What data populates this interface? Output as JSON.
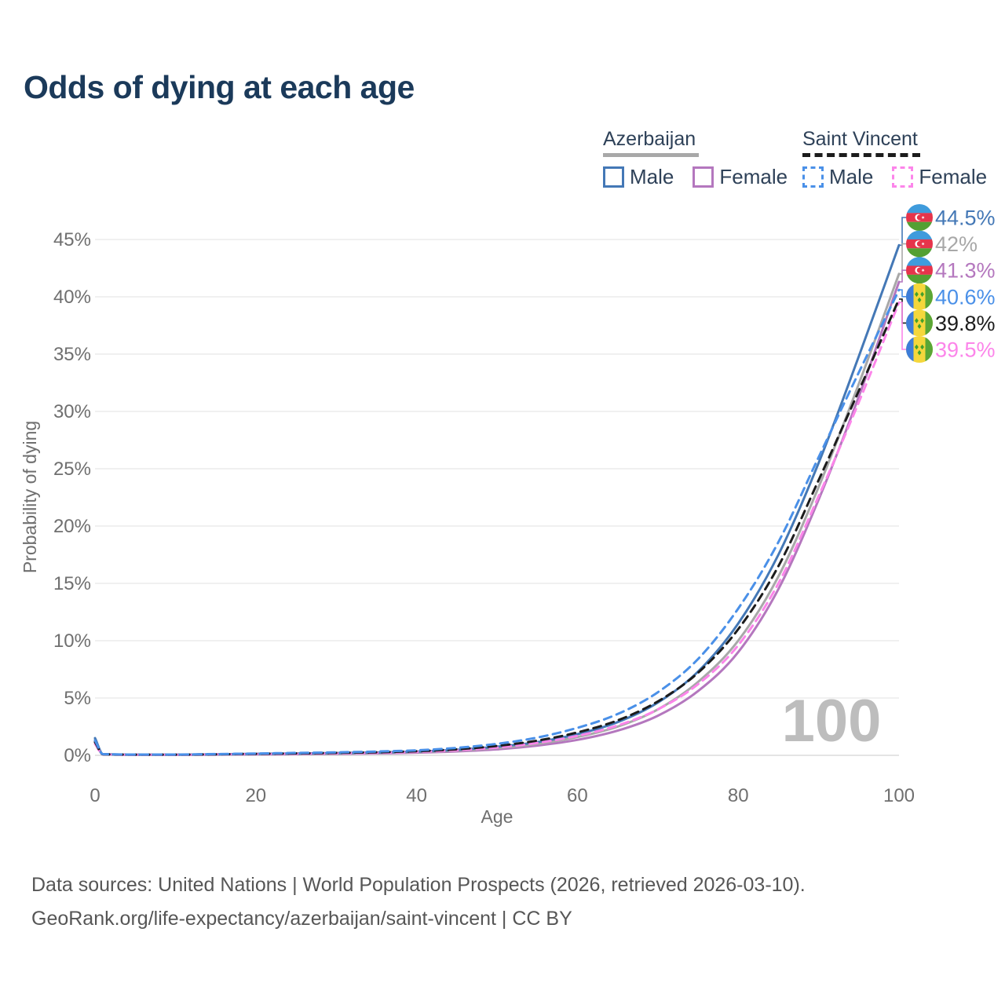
{
  "page": {
    "title": "Odds of dying at each age"
  },
  "legend": {
    "groups": [
      {
        "id": "azerbaijan",
        "title": "Azerbaijan",
        "line_color": "#9e9e9e",
        "line_style": "solid",
        "items": [
          {
            "label": "Male",
            "color": "#4478b6",
            "style": "solid"
          },
          {
            "label": "Female",
            "color": "#b477be",
            "style": "solid"
          }
        ]
      },
      {
        "id": "saint-vincent",
        "title": "Saint Vincent",
        "line_color": "#1a1a1a",
        "line_style": "dashed",
        "items": [
          {
            "label": "Male",
            "color": "#4a90e8",
            "style": "dashed"
          },
          {
            "label": "Female",
            "color": "#fc85ea",
            "style": "dashed"
          }
        ]
      }
    ]
  },
  "chart_data": {
    "type": "line",
    "title": "Odds of dying at each age",
    "xlabel": "Age",
    "ylabel": "Probability of dying",
    "xlim": [
      0,
      100
    ],
    "ylim": [
      0,
      47
    ],
    "xticks": [
      0,
      20,
      40,
      60,
      80,
      100
    ],
    "yticks": [
      0,
      5,
      10,
      15,
      20,
      25,
      30,
      35,
      40,
      45
    ],
    "ytick_suffix": "%",
    "grid": "horizontal",
    "legend_position": "top-right",
    "watermark": "100",
    "ages": [
      0,
      1,
      5,
      10,
      15,
      20,
      25,
      30,
      35,
      40,
      45,
      50,
      55,
      60,
      65,
      70,
      75,
      80,
      85,
      90,
      95,
      100
    ],
    "series": [
      {
        "id": "az-male",
        "country": "Azerbaijan",
        "sex": "Male",
        "flag": "az",
        "color": "#4478b6",
        "dash": "solid",
        "end_value": 44.5,
        "end_label": "44.5%",
        "values": [
          1.5,
          0.1,
          0.06,
          0.06,
          0.09,
          0.13,
          0.16,
          0.2,
          0.25,
          0.33,
          0.48,
          0.75,
          1.15,
          1.85,
          2.9,
          4.6,
          7.3,
          11.5,
          17.5,
          25.5,
          34.8,
          44.5
        ]
      },
      {
        "id": "az-both",
        "country": "Azerbaijan",
        "sex": "Both sexes",
        "flag": "az",
        "color": "#a8a8a8",
        "dash": "solid",
        "end_value": 42,
        "end_label": "42%",
        "values": [
          1.35,
          0.09,
          0.05,
          0.05,
          0.07,
          0.1,
          0.13,
          0.16,
          0.21,
          0.28,
          0.41,
          0.63,
          1.0,
          1.6,
          2.5,
          4.0,
          6.4,
          10.0,
          15.6,
          23.4,
          32.4,
          42.0
        ]
      },
      {
        "id": "az-female",
        "country": "Azerbaijan",
        "sex": "Female",
        "flag": "az",
        "color": "#b477be",
        "dash": "solid",
        "end_value": 41.3,
        "end_label": "41.3%",
        "values": [
          1.2,
          0.08,
          0.04,
          0.04,
          0.06,
          0.08,
          0.1,
          0.13,
          0.17,
          0.23,
          0.34,
          0.52,
          0.85,
          1.35,
          2.15,
          3.45,
          5.6,
          9.0,
          14.5,
          22.3,
          31.3,
          41.3
        ]
      },
      {
        "id": "sv-male",
        "country": "Saint Vincent",
        "sex": "Male",
        "flag": "sv",
        "color": "#4a90e8",
        "dash": "dashed",
        "end_value": 40.6,
        "end_label": "40.6%",
        "values": [
          1.3,
          0.1,
          0.07,
          0.07,
          0.11,
          0.16,
          0.21,
          0.26,
          0.33,
          0.44,
          0.65,
          1.0,
          1.55,
          2.4,
          3.6,
          5.5,
          8.4,
          12.8,
          18.6,
          26.0,
          33.4,
          40.6
        ]
      },
      {
        "id": "sv-both",
        "country": "Saint Vincent",
        "sex": "Both sexes",
        "flag": "sv",
        "color": "#1c1c1c",
        "dash": "dashed",
        "end_value": 39.8,
        "end_label": "39.8%",
        "values": [
          1.15,
          0.09,
          0.06,
          0.06,
          0.09,
          0.13,
          0.17,
          0.21,
          0.27,
          0.36,
          0.53,
          0.82,
          1.28,
          2.0,
          3.05,
          4.7,
          7.2,
          11.0,
          16.5,
          24.0,
          31.8,
          39.8
        ]
      },
      {
        "id": "sv-female",
        "country": "Saint Vincent",
        "sex": "Female",
        "flag": "sv",
        "color": "#fc85ea",
        "dash": "dashed",
        "end_value": 39.5,
        "end_label": "39.5%",
        "values": [
          1.0,
          0.08,
          0.05,
          0.05,
          0.08,
          0.11,
          0.14,
          0.17,
          0.22,
          0.3,
          0.44,
          0.68,
          1.08,
          1.7,
          2.6,
          4.0,
          6.2,
          9.6,
          15.0,
          22.6,
          30.8,
          39.5
        ]
      }
    ]
  },
  "footer": {
    "line1": "Data sources: United Nations | World Population Prospects (2026, retrieved 2026-03-10).",
    "line2": "GeoRank.org/life-expectancy/azerbaijan/saint-vincent | CC BY"
  }
}
